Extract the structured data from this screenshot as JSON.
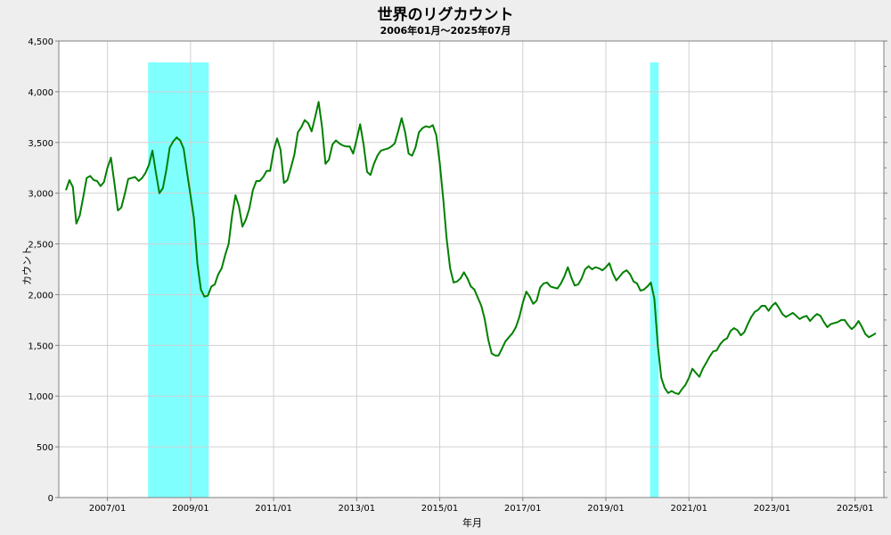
{
  "chart_data": {
    "type": "line",
    "title": "世界のリグカウント",
    "subtitle": "2006年01月～2025年07月",
    "xlabel": "年月",
    "ylabel": "カウント",
    "ylim": [
      0,
      4500
    ],
    "yticks": [
      0,
      500,
      1000,
      1500,
      2000,
      2500,
      3000,
      3500,
      4000,
      4500
    ],
    "ytick_labels": [
      "0",
      "500",
      "1,000",
      "1,500",
      "2,000",
      "2,500",
      "3,000",
      "3,500",
      "4,000",
      "4,500"
    ],
    "xlim": [
      "2006-01",
      "2025-07"
    ],
    "xtick_labels": [
      "2007/01",
      "2009/01",
      "2011/01",
      "2013/01",
      "2015/01",
      "2017/01",
      "2019/01",
      "2021/01",
      "2023/01",
      "2025/01"
    ],
    "xticks": [
      "2007-01",
      "2009-01",
      "2011-01",
      "2013-01",
      "2015-01",
      "2017-01",
      "2019-01",
      "2021-01",
      "2023-01",
      "2025-01"
    ],
    "grid": true,
    "shaded_periods": [
      {
        "start": "2008-01",
        "end": "2009-06",
        "color": "#80ffff"
      },
      {
        "start": "2020-02",
        "end": "2020-04",
        "color": "#80ffff"
      }
    ],
    "series": [
      {
        "color": "#008000",
        "points": [
          [
            "2006-01",
            3030
          ],
          [
            "2006-02",
            3130
          ],
          [
            "2006-03",
            3060
          ],
          [
            "2006-04",
            2700
          ],
          [
            "2006-05",
            2780
          ],
          [
            "2006-06",
            2960
          ],
          [
            "2006-07",
            3150
          ],
          [
            "2006-08",
            3170
          ],
          [
            "2006-09",
            3130
          ],
          [
            "2006-10",
            3120
          ],
          [
            "2006-11",
            3070
          ],
          [
            "2006-12",
            3110
          ],
          [
            "2007-01",
            3250
          ],
          [
            "2007-02",
            3350
          ],
          [
            "2007-03",
            3100
          ],
          [
            "2007-04",
            2830
          ],
          [
            "2007-05",
            2860
          ],
          [
            "2007-06",
            2990
          ],
          [
            "2007-07",
            3140
          ],
          [
            "2007-08",
            3150
          ],
          [
            "2007-09",
            3160
          ],
          [
            "2007-10",
            3120
          ],
          [
            "2007-11",
            3150
          ],
          [
            "2007-12",
            3200
          ],
          [
            "2008-01",
            3280
          ],
          [
            "2008-02",
            3420
          ],
          [
            "2008-03",
            3200
          ],
          [
            "2008-04",
            3000
          ],
          [
            "2008-05",
            3050
          ],
          [
            "2008-06",
            3230
          ],
          [
            "2008-07",
            3450
          ],
          [
            "2008-08",
            3510
          ],
          [
            "2008-09",
            3550
          ],
          [
            "2008-10",
            3520
          ],
          [
            "2008-11",
            3440
          ],
          [
            "2008-12",
            3200
          ],
          [
            "2009-01",
            2980
          ],
          [
            "2009-02",
            2750
          ],
          [
            "2009-03",
            2300
          ],
          [
            "2009-04",
            2050
          ],
          [
            "2009-05",
            1980
          ],
          [
            "2009-06",
            1990
          ],
          [
            "2009-07",
            2080
          ],
          [
            "2009-08",
            2100
          ],
          [
            "2009-09",
            2200
          ],
          [
            "2009-10",
            2260
          ],
          [
            "2009-11",
            2390
          ],
          [
            "2009-12",
            2500
          ],
          [
            "2010-01",
            2780
          ],
          [
            "2010-02",
            2980
          ],
          [
            "2010-03",
            2870
          ],
          [
            "2010-04",
            2670
          ],
          [
            "2010-05",
            2740
          ],
          [
            "2010-06",
            2850
          ],
          [
            "2010-07",
            3030
          ],
          [
            "2010-08",
            3120
          ],
          [
            "2010-09",
            3120
          ],
          [
            "2010-10",
            3160
          ],
          [
            "2010-11",
            3220
          ],
          [
            "2010-12",
            3220
          ],
          [
            "2011-01",
            3420
          ],
          [
            "2011-02",
            3540
          ],
          [
            "2011-03",
            3430
          ],
          [
            "2011-04",
            3100
          ],
          [
            "2011-05",
            3130
          ],
          [
            "2011-06",
            3250
          ],
          [
            "2011-07",
            3380
          ],
          [
            "2011-08",
            3600
          ],
          [
            "2011-09",
            3650
          ],
          [
            "2011-10",
            3720
          ],
          [
            "2011-11",
            3690
          ],
          [
            "2011-12",
            3610
          ],
          [
            "2012-01",
            3750
          ],
          [
            "2012-02",
            3900
          ],
          [
            "2012-03",
            3650
          ],
          [
            "2012-04",
            3290
          ],
          [
            "2012-05",
            3330
          ],
          [
            "2012-06",
            3480
          ],
          [
            "2012-07",
            3520
          ],
          [
            "2012-08",
            3490
          ],
          [
            "2012-09",
            3470
          ],
          [
            "2012-10",
            3460
          ],
          [
            "2012-11",
            3460
          ],
          [
            "2012-12",
            3390
          ],
          [
            "2013-01",
            3530
          ],
          [
            "2013-02",
            3680
          ],
          [
            "2013-03",
            3480
          ],
          [
            "2013-04",
            3210
          ],
          [
            "2013-05",
            3180
          ],
          [
            "2013-06",
            3290
          ],
          [
            "2013-07",
            3370
          ],
          [
            "2013-08",
            3420
          ],
          [
            "2013-09",
            3430
          ],
          [
            "2013-10",
            3440
          ],
          [
            "2013-11",
            3460
          ],
          [
            "2013-12",
            3490
          ],
          [
            "2014-01",
            3610
          ],
          [
            "2014-02",
            3740
          ],
          [
            "2014-03",
            3600
          ],
          [
            "2014-04",
            3390
          ],
          [
            "2014-05",
            3370
          ],
          [
            "2014-06",
            3450
          ],
          [
            "2014-07",
            3600
          ],
          [
            "2014-08",
            3640
          ],
          [
            "2014-09",
            3660
          ],
          [
            "2014-10",
            3650
          ],
          [
            "2014-11",
            3670
          ],
          [
            "2014-12",
            3570
          ],
          [
            "2015-01",
            3300
          ],
          [
            "2015-02",
            2950
          ],
          [
            "2015-03",
            2550
          ],
          [
            "2015-04",
            2260
          ],
          [
            "2015-05",
            2120
          ],
          [
            "2015-06",
            2130
          ],
          [
            "2015-07",
            2160
          ],
          [
            "2015-08",
            2220
          ],
          [
            "2015-09",
            2160
          ],
          [
            "2015-10",
            2080
          ],
          [
            "2015-11",
            2050
          ],
          [
            "2015-12",
            1970
          ],
          [
            "2016-01",
            1890
          ],
          [
            "2016-02",
            1760
          ],
          [
            "2016-03",
            1560
          ],
          [
            "2016-04",
            1420
          ],
          [
            "2016-05",
            1400
          ],
          [
            "2016-06",
            1400
          ],
          [
            "2016-07",
            1470
          ],
          [
            "2016-08",
            1540
          ],
          [
            "2016-09",
            1580
          ],
          [
            "2016-10",
            1620
          ],
          [
            "2016-11",
            1680
          ],
          [
            "2016-12",
            1780
          ],
          [
            "2017-01",
            1920
          ],
          [
            "2017-02",
            2030
          ],
          [
            "2017-03",
            1980
          ],
          [
            "2017-04",
            1910
          ],
          [
            "2017-05",
            1940
          ],
          [
            "2017-06",
            2070
          ],
          [
            "2017-07",
            2110
          ],
          [
            "2017-08",
            2120
          ],
          [
            "2017-09",
            2080
          ],
          [
            "2017-10",
            2070
          ],
          [
            "2017-11",
            2060
          ],
          [
            "2017-12",
            2110
          ],
          [
            "2018-01",
            2180
          ],
          [
            "2018-02",
            2270
          ],
          [
            "2018-03",
            2170
          ],
          [
            "2018-04",
            2090
          ],
          [
            "2018-05",
            2100
          ],
          [
            "2018-06",
            2160
          ],
          [
            "2018-07",
            2250
          ],
          [
            "2018-08",
            2280
          ],
          [
            "2018-09",
            2250
          ],
          [
            "2018-10",
            2270
          ],
          [
            "2018-11",
            2260
          ],
          [
            "2018-12",
            2240
          ],
          [
            "2019-01",
            2270
          ],
          [
            "2019-02",
            2310
          ],
          [
            "2019-03",
            2210
          ],
          [
            "2019-04",
            2140
          ],
          [
            "2019-05",
            2180
          ],
          [
            "2019-06",
            2220
          ],
          [
            "2019-07",
            2240
          ],
          [
            "2019-08",
            2200
          ],
          [
            "2019-09",
            2130
          ],
          [
            "2019-10",
            2110
          ],
          [
            "2019-11",
            2040
          ],
          [
            "2019-12",
            2050
          ],
          [
            "2020-01",
            2080
          ],
          [
            "2020-02",
            2120
          ],
          [
            "2020-03",
            1960
          ],
          [
            "2020-04",
            1500
          ],
          [
            "2020-05",
            1180
          ],
          [
            "2020-06",
            1080
          ],
          [
            "2020-07",
            1030
          ],
          [
            "2020-08",
            1050
          ],
          [
            "2020-09",
            1030
          ],
          [
            "2020-10",
            1020
          ],
          [
            "2020-11",
            1070
          ],
          [
            "2020-12",
            1110
          ],
          [
            "2021-01",
            1180
          ],
          [
            "2021-02",
            1270
          ],
          [
            "2021-03",
            1230
          ],
          [
            "2021-04",
            1190
          ],
          [
            "2021-05",
            1270
          ],
          [
            "2021-06",
            1330
          ],
          [
            "2021-07",
            1390
          ],
          [
            "2021-08",
            1440
          ],
          [
            "2021-09",
            1450
          ],
          [
            "2021-10",
            1510
          ],
          [
            "2021-11",
            1550
          ],
          [
            "2021-12",
            1570
          ],
          [
            "2022-01",
            1640
          ],
          [
            "2022-02",
            1670
          ],
          [
            "2022-03",
            1650
          ],
          [
            "2022-04",
            1600
          ],
          [
            "2022-05",
            1630
          ],
          [
            "2022-06",
            1710
          ],
          [
            "2022-07",
            1780
          ],
          [
            "2022-08",
            1830
          ],
          [
            "2022-09",
            1850
          ],
          [
            "2022-10",
            1890
          ],
          [
            "2022-11",
            1890
          ],
          [
            "2022-12",
            1840
          ],
          [
            "2023-01",
            1890
          ],
          [
            "2023-02",
            1920
          ],
          [
            "2023-03",
            1870
          ],
          [
            "2023-04",
            1810
          ],
          [
            "2023-05",
            1780
          ],
          [
            "2023-06",
            1800
          ],
          [
            "2023-07",
            1820
          ],
          [
            "2023-08",
            1790
          ],
          [
            "2023-09",
            1760
          ],
          [
            "2023-10",
            1780
          ],
          [
            "2023-11",
            1790
          ],
          [
            "2023-12",
            1740
          ],
          [
            "2024-01",
            1780
          ],
          [
            "2024-02",
            1810
          ],
          [
            "2024-03",
            1790
          ],
          [
            "2024-04",
            1730
          ],
          [
            "2024-05",
            1680
          ],
          [
            "2024-06",
            1710
          ],
          [
            "2024-07",
            1720
          ],
          [
            "2024-08",
            1730
          ],
          [
            "2024-09",
            1750
          ],
          [
            "2024-10",
            1750
          ],
          [
            "2024-11",
            1700
          ],
          [
            "2024-12",
            1660
          ],
          [
            "2025-01",
            1690
          ],
          [
            "2025-02",
            1740
          ],
          [
            "2025-03",
            1680
          ],
          [
            "2025-04",
            1610
          ],
          [
            "2025-05",
            1580
          ],
          [
            "2025-06",
            1600
          ],
          [
            "2025-07",
            1620
          ]
        ]
      }
    ]
  }
}
